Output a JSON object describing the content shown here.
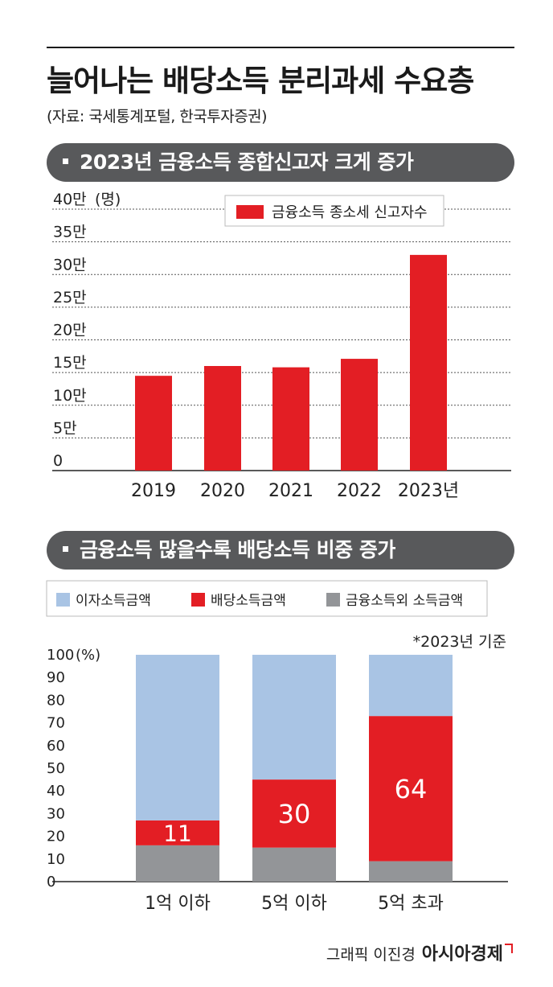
{
  "header": {
    "title": "늘어나는 배당소득 분리과세 수요층",
    "source": "(자료: 국세통계포털, 한국투자증권)"
  },
  "colors": {
    "red": "#e31e24",
    "blue": "#a9c4e4",
    "gray": "#939598",
    "header_bg": "#58595b"
  },
  "chart_data": [
    {
      "type": "bar",
      "title": "2023년 금융소득 종합신고자 크게 증가",
      "legend": "금융소득 종소세 신고자수",
      "legend_position": "top-right",
      "ylabel": "(명)",
      "y_ticks": [
        "0",
        "5만",
        "10만",
        "15만",
        "20만",
        "25만",
        "30만",
        "35만",
        "40만"
      ],
      "ylim": [
        0,
        400000
      ],
      "grid": true,
      "categories": [
        "2019",
        "2020",
        "2021",
        "2022",
        "2023년"
      ],
      "values": [
        145000,
        160000,
        158000,
        171000,
        330000
      ]
    },
    {
      "type": "bar",
      "stacked": true,
      "title": "금융소득 많을수록 배당소득 비중 증가",
      "note": "*2023년 기준",
      "ylabel": "(%)",
      "y_ticks": [
        "0",
        "10",
        "20",
        "30",
        "40",
        "50",
        "60",
        "70",
        "80",
        "90",
        "100"
      ],
      "ylim": [
        0,
        100
      ],
      "grid": false,
      "legend_position": "top",
      "categories": [
        "1억 이하",
        "5억 이하",
        "5억 초과"
      ],
      "series": [
        {
          "name": "금융소득외 소득금액",
          "values": [
            16,
            15,
            9
          ]
        },
        {
          "name": "배당소득금액",
          "values": [
            11,
            30,
            64
          ],
          "labels": [
            "11",
            "30",
            "64"
          ]
        },
        {
          "name": "이자소득금액",
          "values": [
            73,
            55,
            27
          ]
        }
      ]
    }
  ],
  "footer": {
    "credit": "그래픽 이진경",
    "brand": "아시아경제"
  }
}
